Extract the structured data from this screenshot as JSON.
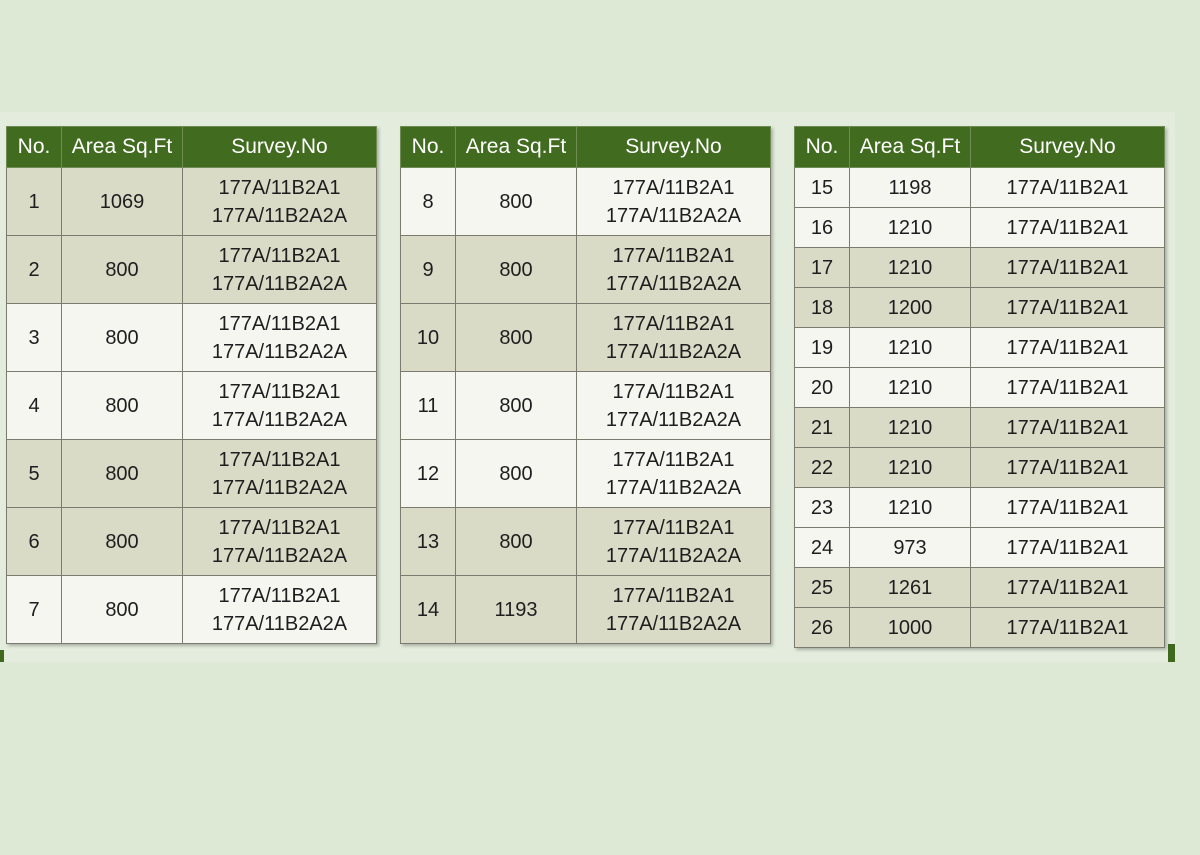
{
  "headers": [
    "No.",
    "Area Sq.Ft",
    "Survey.No"
  ],
  "colors": {
    "background": "#dde9d5",
    "header_bg": "#416b1f",
    "row_light": "#f6f6f1",
    "row_dark": "#d9dbc7"
  },
  "table_left": [
    {
      "no": "1",
      "area": "1069",
      "survey1": "177A/11B2A1",
      "survey2": "177A/11B2A2A",
      "shade": "dark"
    },
    {
      "no": "2",
      "area": "800",
      "survey1": "177A/11B2A1",
      "survey2": "177A/11B2A2A",
      "shade": "dark"
    },
    {
      "no": "3",
      "area": "800",
      "survey1": "177A/11B2A1",
      "survey2": "177A/11B2A2A",
      "shade": "light"
    },
    {
      "no": "4",
      "area": "800",
      "survey1": "177A/11B2A1",
      "survey2": "177A/11B2A2A",
      "shade": "light"
    },
    {
      "no": "5",
      "area": "800",
      "survey1": "177A/11B2A1",
      "survey2": "177A/11B2A2A",
      "shade": "dark"
    },
    {
      "no": "6",
      "area": "800",
      "survey1": "177A/11B2A1",
      "survey2": "177A/11B2A2A",
      "shade": "dark"
    },
    {
      "no": "7",
      "area": "800",
      "survey1": "177A/11B2A1",
      "survey2": "177A/11B2A2A",
      "shade": "light"
    }
  ],
  "table_middle": [
    {
      "no": "8",
      "area": "800",
      "survey1": "177A/11B2A1",
      "survey2": "177A/11B2A2A",
      "shade": "light"
    },
    {
      "no": "9",
      "area": "800",
      "survey1": "177A/11B2A1",
      "survey2": "177A/11B2A2A",
      "shade": "dark"
    },
    {
      "no": "10",
      "area": "800",
      "survey1": "177A/11B2A1",
      "survey2": "177A/11B2A2A",
      "shade": "dark"
    },
    {
      "no": "11",
      "area": "800",
      "survey1": "177A/11B2A1",
      "survey2": "177A/11B2A2A",
      "shade": "light"
    },
    {
      "no": "12",
      "area": "800",
      "survey1": "177A/11B2A1",
      "survey2": "177A/11B2A2A",
      "shade": "light"
    },
    {
      "no": "13",
      "area": "800",
      "survey1": "177A/11B2A1",
      "survey2": "177A/11B2A2A",
      "shade": "dark"
    },
    {
      "no": "14",
      "area": "1193",
      "survey1": "177A/11B2A1",
      "survey2": "177A/11B2A2A",
      "shade": "dark"
    }
  ],
  "table_right": [
    {
      "no": "15",
      "area": "1198",
      "survey": "177A/11B2A1",
      "shade": "light"
    },
    {
      "no": "16",
      "area": "1210",
      "survey": "177A/11B2A1",
      "shade": "light"
    },
    {
      "no": "17",
      "area": "1210",
      "survey": "177A/11B2A1",
      "shade": "dark"
    },
    {
      "no": "18",
      "area": "1200",
      "survey": "177A/11B2A1",
      "shade": "dark"
    },
    {
      "no": "19",
      "area": "1210",
      "survey": "177A/11B2A1",
      "shade": "light"
    },
    {
      "no": "20",
      "area": "1210",
      "survey": "177A/11B2A1",
      "shade": "light"
    },
    {
      "no": "21",
      "area": "1210",
      "survey": "177A/11B2A1",
      "shade": "dark"
    },
    {
      "no": "22",
      "area": "1210",
      "survey": "177A/11B2A1",
      "shade": "dark"
    },
    {
      "no": "23",
      "area": "1210",
      "survey": "177A/11B2A1",
      "shade": "light"
    },
    {
      "no": "24",
      "area": "973",
      "survey": "177A/11B2A1",
      "shade": "light"
    },
    {
      "no": "25",
      "area": "1261",
      "survey": "177A/11B2A1",
      "shade": "dark"
    },
    {
      "no": "26",
      "area": "1000",
      "survey": "177A/11B2A1",
      "shade": "dark"
    }
  ]
}
